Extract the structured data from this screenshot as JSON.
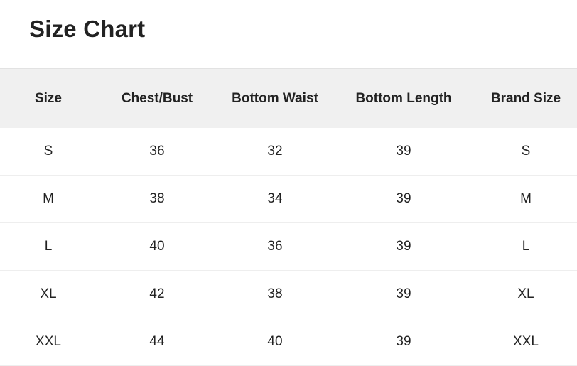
{
  "title": "Size Chart",
  "table": {
    "headers": [
      "Size",
      "Chest/Bust",
      "Bottom Waist",
      "Bottom Length",
      "Brand Size"
    ],
    "rows": [
      [
        "S",
        "36",
        "32",
        "39",
        "S"
      ],
      [
        "M",
        "38",
        "34",
        "39",
        "M"
      ],
      [
        "L",
        "40",
        "36",
        "39",
        "L"
      ],
      [
        "XL",
        "42",
        "38",
        "39",
        "XL"
      ],
      [
        "XXL",
        "44",
        "40",
        "39",
        "XXL"
      ]
    ]
  }
}
